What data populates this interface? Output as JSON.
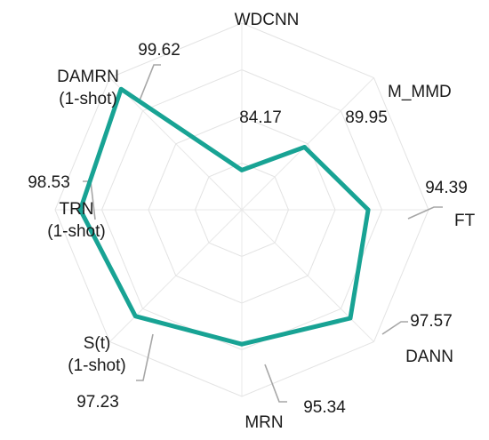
{
  "chart_data": {
    "type": "radar",
    "title": "",
    "categories": [
      [
        "WDCNN"
      ],
      [
        "M_MMD"
      ],
      [
        "FT"
      ],
      [
        "DANN"
      ],
      [
        "MRN"
      ],
      [
        "S(t)",
        "(1-shot)"
      ],
      [
        "TRN",
        "(1-shot)"
      ],
      [
        "DAMRN",
        "(1-shot)"
      ]
    ],
    "series": [
      {
        "values": [
          84.17,
          89.95,
          94.39,
          97.57,
          95.34,
          97.23,
          98.53,
          99.62
        ]
      }
    ],
    "value_labels": [
      "84.17",
      "89.95",
      "94.39",
      "97.57",
      "95.34",
      "97.23",
      "98.53",
      "99.62"
    ],
    "grid": true,
    "grid_rings": 4,
    "line_color": "#18a394",
    "grid_color": "#e3e3e3",
    "leader_color": "#a6a6a6"
  }
}
